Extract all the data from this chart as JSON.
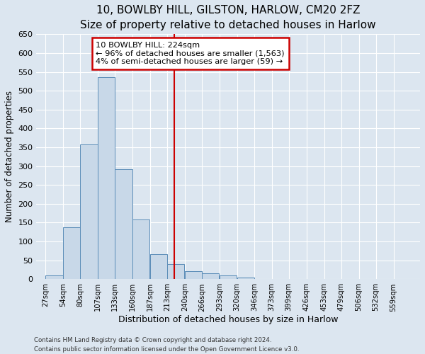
{
  "title": "10, BOWLBY HILL, GILSTON, HARLOW, CM20 2FZ",
  "subtitle": "Size of property relative to detached houses in Harlow",
  "xlabel": "Distribution of detached houses by size in Harlow",
  "ylabel": "Number of detached properties",
  "bin_labels": [
    "27sqm",
    "54sqm",
    "80sqm",
    "107sqm",
    "133sqm",
    "160sqm",
    "187sqm",
    "213sqm",
    "240sqm",
    "266sqm",
    "293sqm",
    "320sqm",
    "346sqm",
    "373sqm",
    "399sqm",
    "426sqm",
    "453sqm",
    "479sqm",
    "506sqm",
    "532sqm",
    "559sqm"
  ],
  "bin_edges": [
    27,
    54,
    80,
    107,
    133,
    160,
    187,
    213,
    240,
    266,
    293,
    320,
    346,
    373,
    399,
    426,
    453,
    479,
    506,
    532,
    559
  ],
  "bar_heights": [
    10,
    137,
    358,
    535,
    292,
    158,
    67,
    40,
    22,
    15,
    10,
    4,
    0,
    0,
    0,
    0,
    1,
    0,
    0,
    1,
    0
  ],
  "bar_color": "#c8d8e8",
  "bar_edge_color": "#5b8db8",
  "property_line_x": 224,
  "property_line_color": "#cc0000",
  "annotation_title": "10 BOWLBY HILL: 224sqm",
  "annotation_line1": "← 96% of detached houses are smaller (1,563)",
  "annotation_line2": "4% of semi-detached houses are larger (59) →",
  "annotation_box_color": "#cc0000",
  "ylim": [
    0,
    650
  ],
  "yticks": [
    0,
    50,
    100,
    150,
    200,
    250,
    300,
    350,
    400,
    450,
    500,
    550,
    600,
    650
  ],
  "footer_line1": "Contains HM Land Registry data © Crown copyright and database right 2024.",
  "footer_line2": "Contains public sector information licensed under the Open Government Licence v3.0.",
  "background_color": "#dce6f0",
  "plot_background_color": "#dce6f0",
  "title_fontsize": 11,
  "subtitle_fontsize": 9.5,
  "ylabel_fontsize": 8.5,
  "xlabel_fontsize": 9
}
